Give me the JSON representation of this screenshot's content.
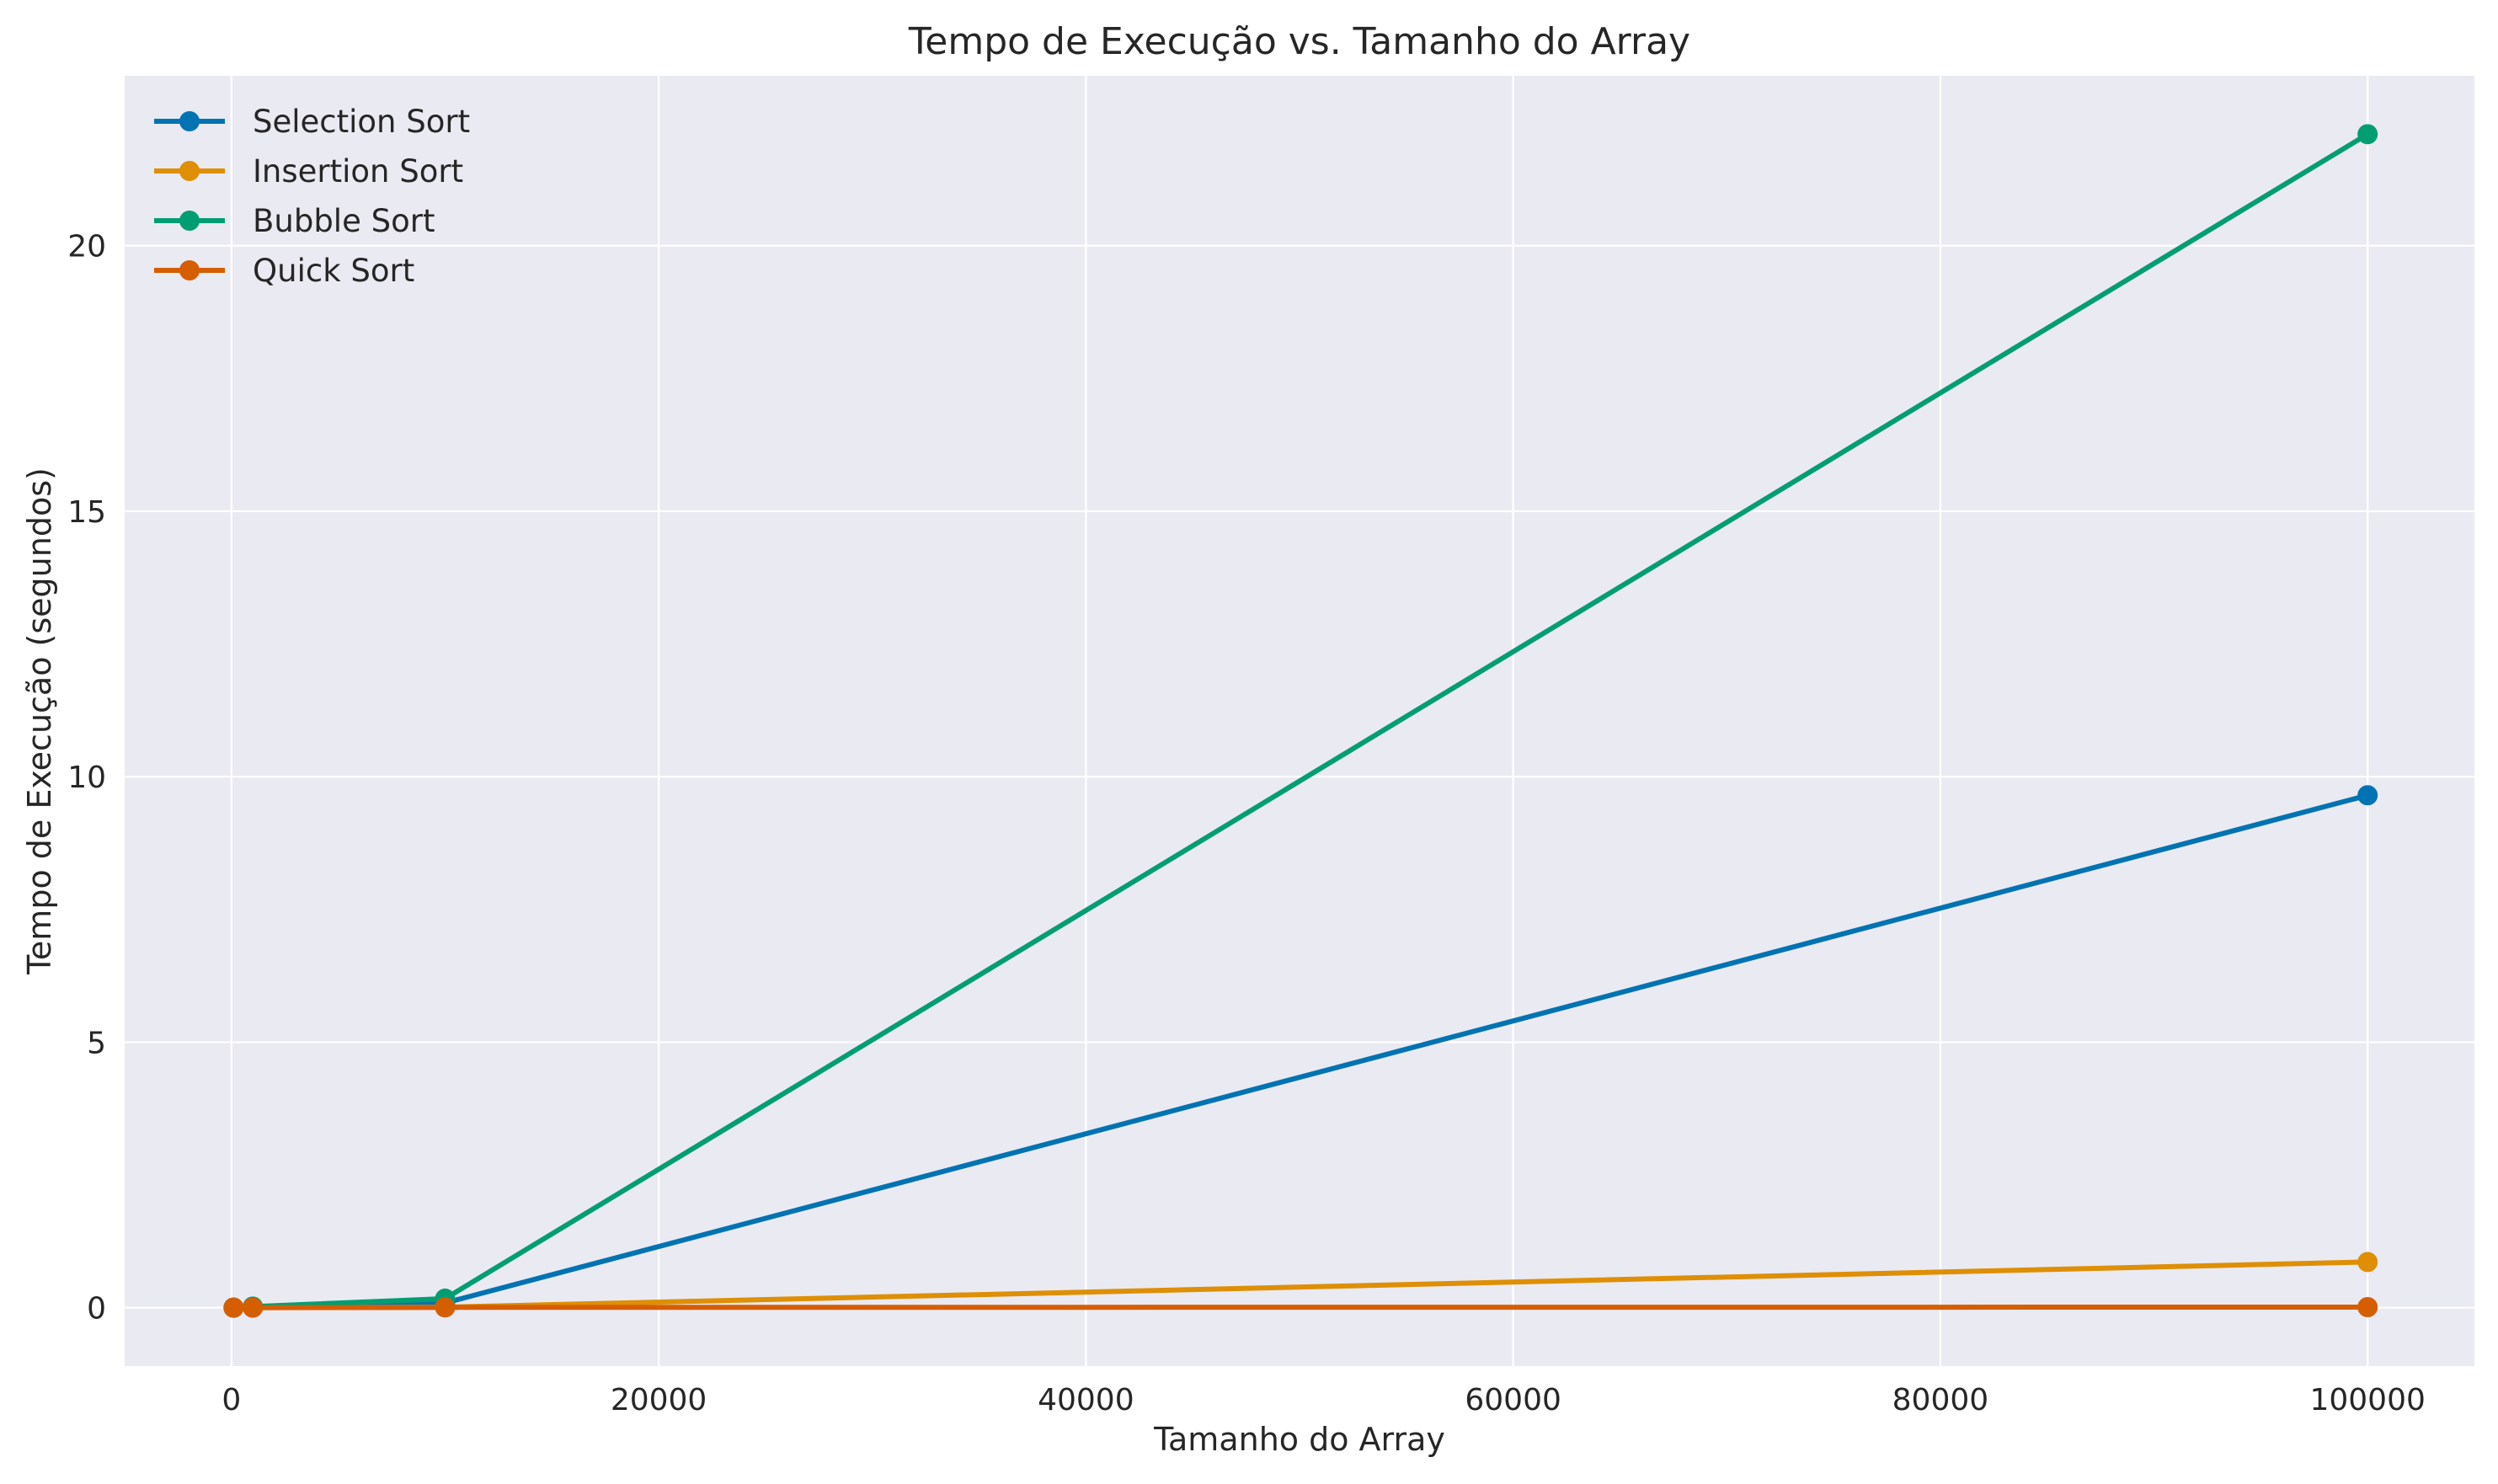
{
  "chart_data": {
    "type": "line",
    "title": "Tempo de Execução vs. Tamanho do Array",
    "xlabel": "Tamanho do Array",
    "ylabel": "Tempo de Execução (segundos)",
    "x": [
      100,
      1000,
      10000,
      100000
    ],
    "xlim": [
      -5000,
      105000
    ],
    "ylim": [
      -1.1,
      23.2
    ],
    "xticks": [
      0,
      20000,
      40000,
      60000,
      80000,
      100000
    ],
    "xtick_labels": [
      "0",
      "20000",
      "40000",
      "60000",
      "80000",
      "100000"
    ],
    "yticks": [
      0,
      5,
      10,
      15,
      20
    ],
    "ytick_labels": [
      "0",
      "5",
      "10",
      "15",
      "20"
    ],
    "grid": true,
    "legend_position": "top-left",
    "series": [
      {
        "name": "Selection Sort",
        "color": "#0173b2",
        "values": [
          0.0005,
          0.01,
          0.09,
          9.65
        ]
      },
      {
        "name": "Insertion Sort",
        "color": "#de8f05",
        "values": [
          0.0001,
          0.001,
          0.01,
          0.86
        ]
      },
      {
        "name": "Bubble Sort",
        "color": "#029e73",
        "values": [
          0.001,
          0.02,
          0.17,
          22.1
        ]
      },
      {
        "name": "Quick Sort",
        "color": "#d55e00",
        "values": [
          0.0001,
          0.0005,
          0.005,
          0.01
        ]
      }
    ]
  }
}
